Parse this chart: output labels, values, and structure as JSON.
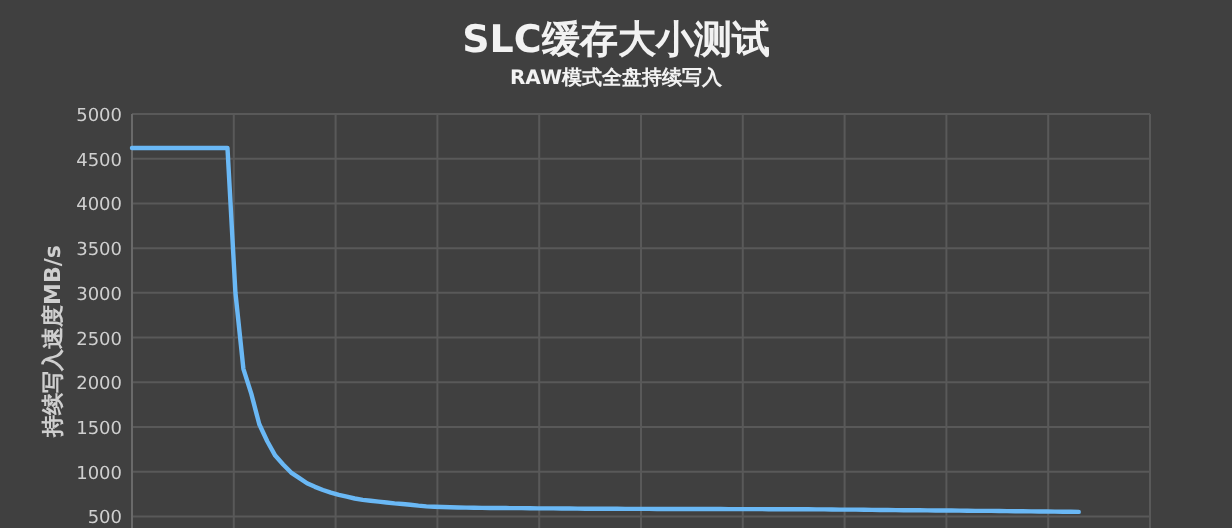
{
  "chart_data": {
    "type": "line",
    "title": "SLC缓存大小测试",
    "subtitle": "RAW模式全盘持续写入",
    "ylabel": "持续写入速度MB/s",
    "categories": [
      null,
      null,
      null,
      null,
      null,
      null,
      null,
      null,
      null,
      null,
      null,
      null,
      null,
      null,
      null,
      null,
      null,
      null,
      null,
      null,
      null,
      null,
      null,
      null,
      null,
      null,
      null,
      null,
      null,
      null,
      null,
      null,
      null,
      null,
      null,
      null,
      null,
      null,
      null,
      null,
      null,
      null,
      null,
      null,
      null,
      null,
      null,
      null,
      null,
      null,
      null,
      null,
      null,
      null,
      null,
      null,
      null,
      null,
      null,
      null,
      null,
      null,
      null,
      null,
      null,
      null,
      null,
      null,
      null,
      null,
      null,
      null,
      null,
      null,
      null,
      null,
      null,
      null,
      null,
      null,
      null,
      null,
      null,
      null,
      null,
      null,
      null,
      null,
      null,
      null,
      null,
      null,
      null,
      null,
      null,
      null,
      null,
      null,
      null,
      null,
      null,
      null,
      null,
      null,
      null,
      null,
      null,
      null,
      null,
      null,
      null,
      null,
      null,
      null,
      null,
      null,
      null,
      null,
      null,
      null
    ],
    "series": [
      {
        "color": "#6ab8f5",
        "values": [
          4620,
          4620,
          4620,
          4620,
          4620,
          4620,
          4620,
          4620,
          4620,
          4620,
          4620,
          4620,
          4620,
          3000,
          2150,
          1870,
          1530,
          1340,
          1180,
          1080,
          990,
          930,
          870,
          830,
          795,
          765,
          740,
          720,
          700,
          685,
          675,
          665,
          655,
          645,
          638,
          630,
          620,
          612,
          608,
          605,
          602,
          600,
          598,
          596,
          595,
          594,
          594,
          593,
          592,
          592,
          591,
          590,
          590,
          589,
          588,
          588,
          587,
          586,
          586,
          585,
          585,
          585,
          584,
          584,
          584,
          584,
          583,
          583,
          583,
          583,
          582,
          582,
          582,
          582,
          582,
          581,
          581,
          581,
          581,
          581,
          580,
          580,
          580,
          580,
          580,
          579,
          578,
          578,
          577,
          576,
          575,
          575,
          574,
          573,
          572,
          571,
          570,
          569,
          568,
          568,
          567,
          566,
          565,
          565,
          564,
          563,
          562,
          561,
          561,
          560,
          559,
          558,
          557,
          556,
          555,
          554,
          553,
          552,
          551,
          550
        ]
      }
    ],
    "ylim": [
      370,
      5000
    ],
    "yticks": [
      500,
      1000,
      1500,
      2000,
      2500,
      3000,
      3500,
      4000,
      4500,
      5000
    ],
    "tick_labels": "y",
    "grid": true,
    "marker": "none",
    "line_style": "solid"
  }
}
